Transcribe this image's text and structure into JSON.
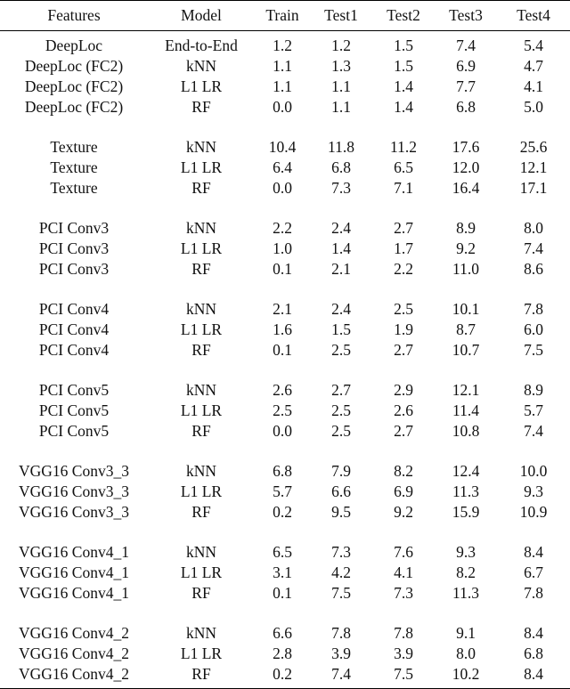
{
  "table": {
    "headers": [
      "Features",
      "Model",
      "Train",
      "Test1",
      "Test2",
      "Test3",
      "Test4"
    ],
    "groups": [
      {
        "rows": [
          [
            "DeepLoc",
            "End-to-End",
            "1.2",
            "1.2",
            "1.5",
            "7.4",
            "5.4"
          ],
          [
            "DeepLoc (FC2)",
            "kNN",
            "1.1",
            "1.3",
            "1.5",
            "6.9",
            "4.7"
          ],
          [
            "DeepLoc (FC2)",
            "L1 LR",
            "1.1",
            "1.1",
            "1.4",
            "7.7",
            "4.1"
          ],
          [
            "DeepLoc (FC2)",
            "RF",
            "0.0",
            "1.1",
            "1.4",
            "6.8",
            "5.0"
          ]
        ]
      },
      {
        "rows": [
          [
            "Texture",
            "kNN",
            "10.4",
            "11.8",
            "11.2",
            "17.6",
            "25.6"
          ],
          [
            "Texture",
            "L1 LR",
            "6.4",
            "6.8",
            "6.5",
            "12.0",
            "12.1"
          ],
          [
            "Texture",
            "RF",
            "0.0",
            "7.3",
            "7.1",
            "16.4",
            "17.1"
          ]
        ]
      },
      {
        "rows": [
          [
            "PCI Conv3",
            "kNN",
            "2.2",
            "2.4",
            "2.7",
            "8.9",
            "8.0"
          ],
          [
            "PCI Conv3",
            "L1 LR",
            "1.0",
            "1.4",
            "1.7",
            "9.2",
            "7.4"
          ],
          [
            "PCI Conv3",
            "RF",
            "0.1",
            "2.1",
            "2.2",
            "11.0",
            "8.6"
          ]
        ]
      },
      {
        "rows": [
          [
            "PCI Conv4",
            "kNN",
            "2.1",
            "2.4",
            "2.5",
            "10.1",
            "7.8"
          ],
          [
            "PCI Conv4",
            "L1 LR",
            "1.6",
            "1.5",
            "1.9",
            "8.7",
            "6.0"
          ],
          [
            "PCI Conv4",
            "RF",
            "0.1",
            "2.5",
            "2.7",
            "10.7",
            "7.5"
          ]
        ]
      },
      {
        "rows": [
          [
            "PCI Conv5",
            "kNN",
            "2.6",
            "2.7",
            "2.9",
            "12.1",
            "8.9"
          ],
          [
            "PCI Conv5",
            "L1 LR",
            "2.5",
            "2.5",
            "2.6",
            "11.4",
            "5.7"
          ],
          [
            "PCI Conv5",
            "RF",
            "0.0",
            "2.5",
            "2.7",
            "10.8",
            "7.4"
          ]
        ]
      },
      {
        "rows": [
          [
            "VGG16 Conv3_3",
            "kNN",
            "6.8",
            "7.9",
            "8.2",
            "12.4",
            "10.0"
          ],
          [
            "VGG16 Conv3_3",
            "L1 LR",
            "5.7",
            "6.6",
            "6.9",
            "11.3",
            "9.3"
          ],
          [
            "VGG16 Conv3_3",
            "RF",
            "0.2",
            "9.5",
            "9.2",
            "15.9",
            "10.9"
          ]
        ]
      },
      {
        "rows": [
          [
            "VGG16 Conv4_1",
            "kNN",
            "6.5",
            "7.3",
            "7.6",
            "9.3",
            "8.4"
          ],
          [
            "VGG16 Conv4_1",
            "L1 LR",
            "3.1",
            "4.2",
            "4.1",
            "8.2",
            "6.7"
          ],
          [
            "VGG16 Conv4_1",
            "RF",
            "0.1",
            "7.5",
            "7.3",
            "11.3",
            "7.8"
          ]
        ]
      },
      {
        "rows": [
          [
            "VGG16 Conv4_2",
            "kNN",
            "6.6",
            "7.8",
            "7.8",
            "9.1",
            "8.4"
          ],
          [
            "VGG16 Conv4_2",
            "L1 LR",
            "2.8",
            "3.9",
            "3.9",
            "8.0",
            "6.8"
          ],
          [
            "VGG16 Conv4_2",
            "RF",
            "0.2",
            "7.4",
            "7.5",
            "10.2",
            "8.4"
          ]
        ]
      }
    ]
  }
}
